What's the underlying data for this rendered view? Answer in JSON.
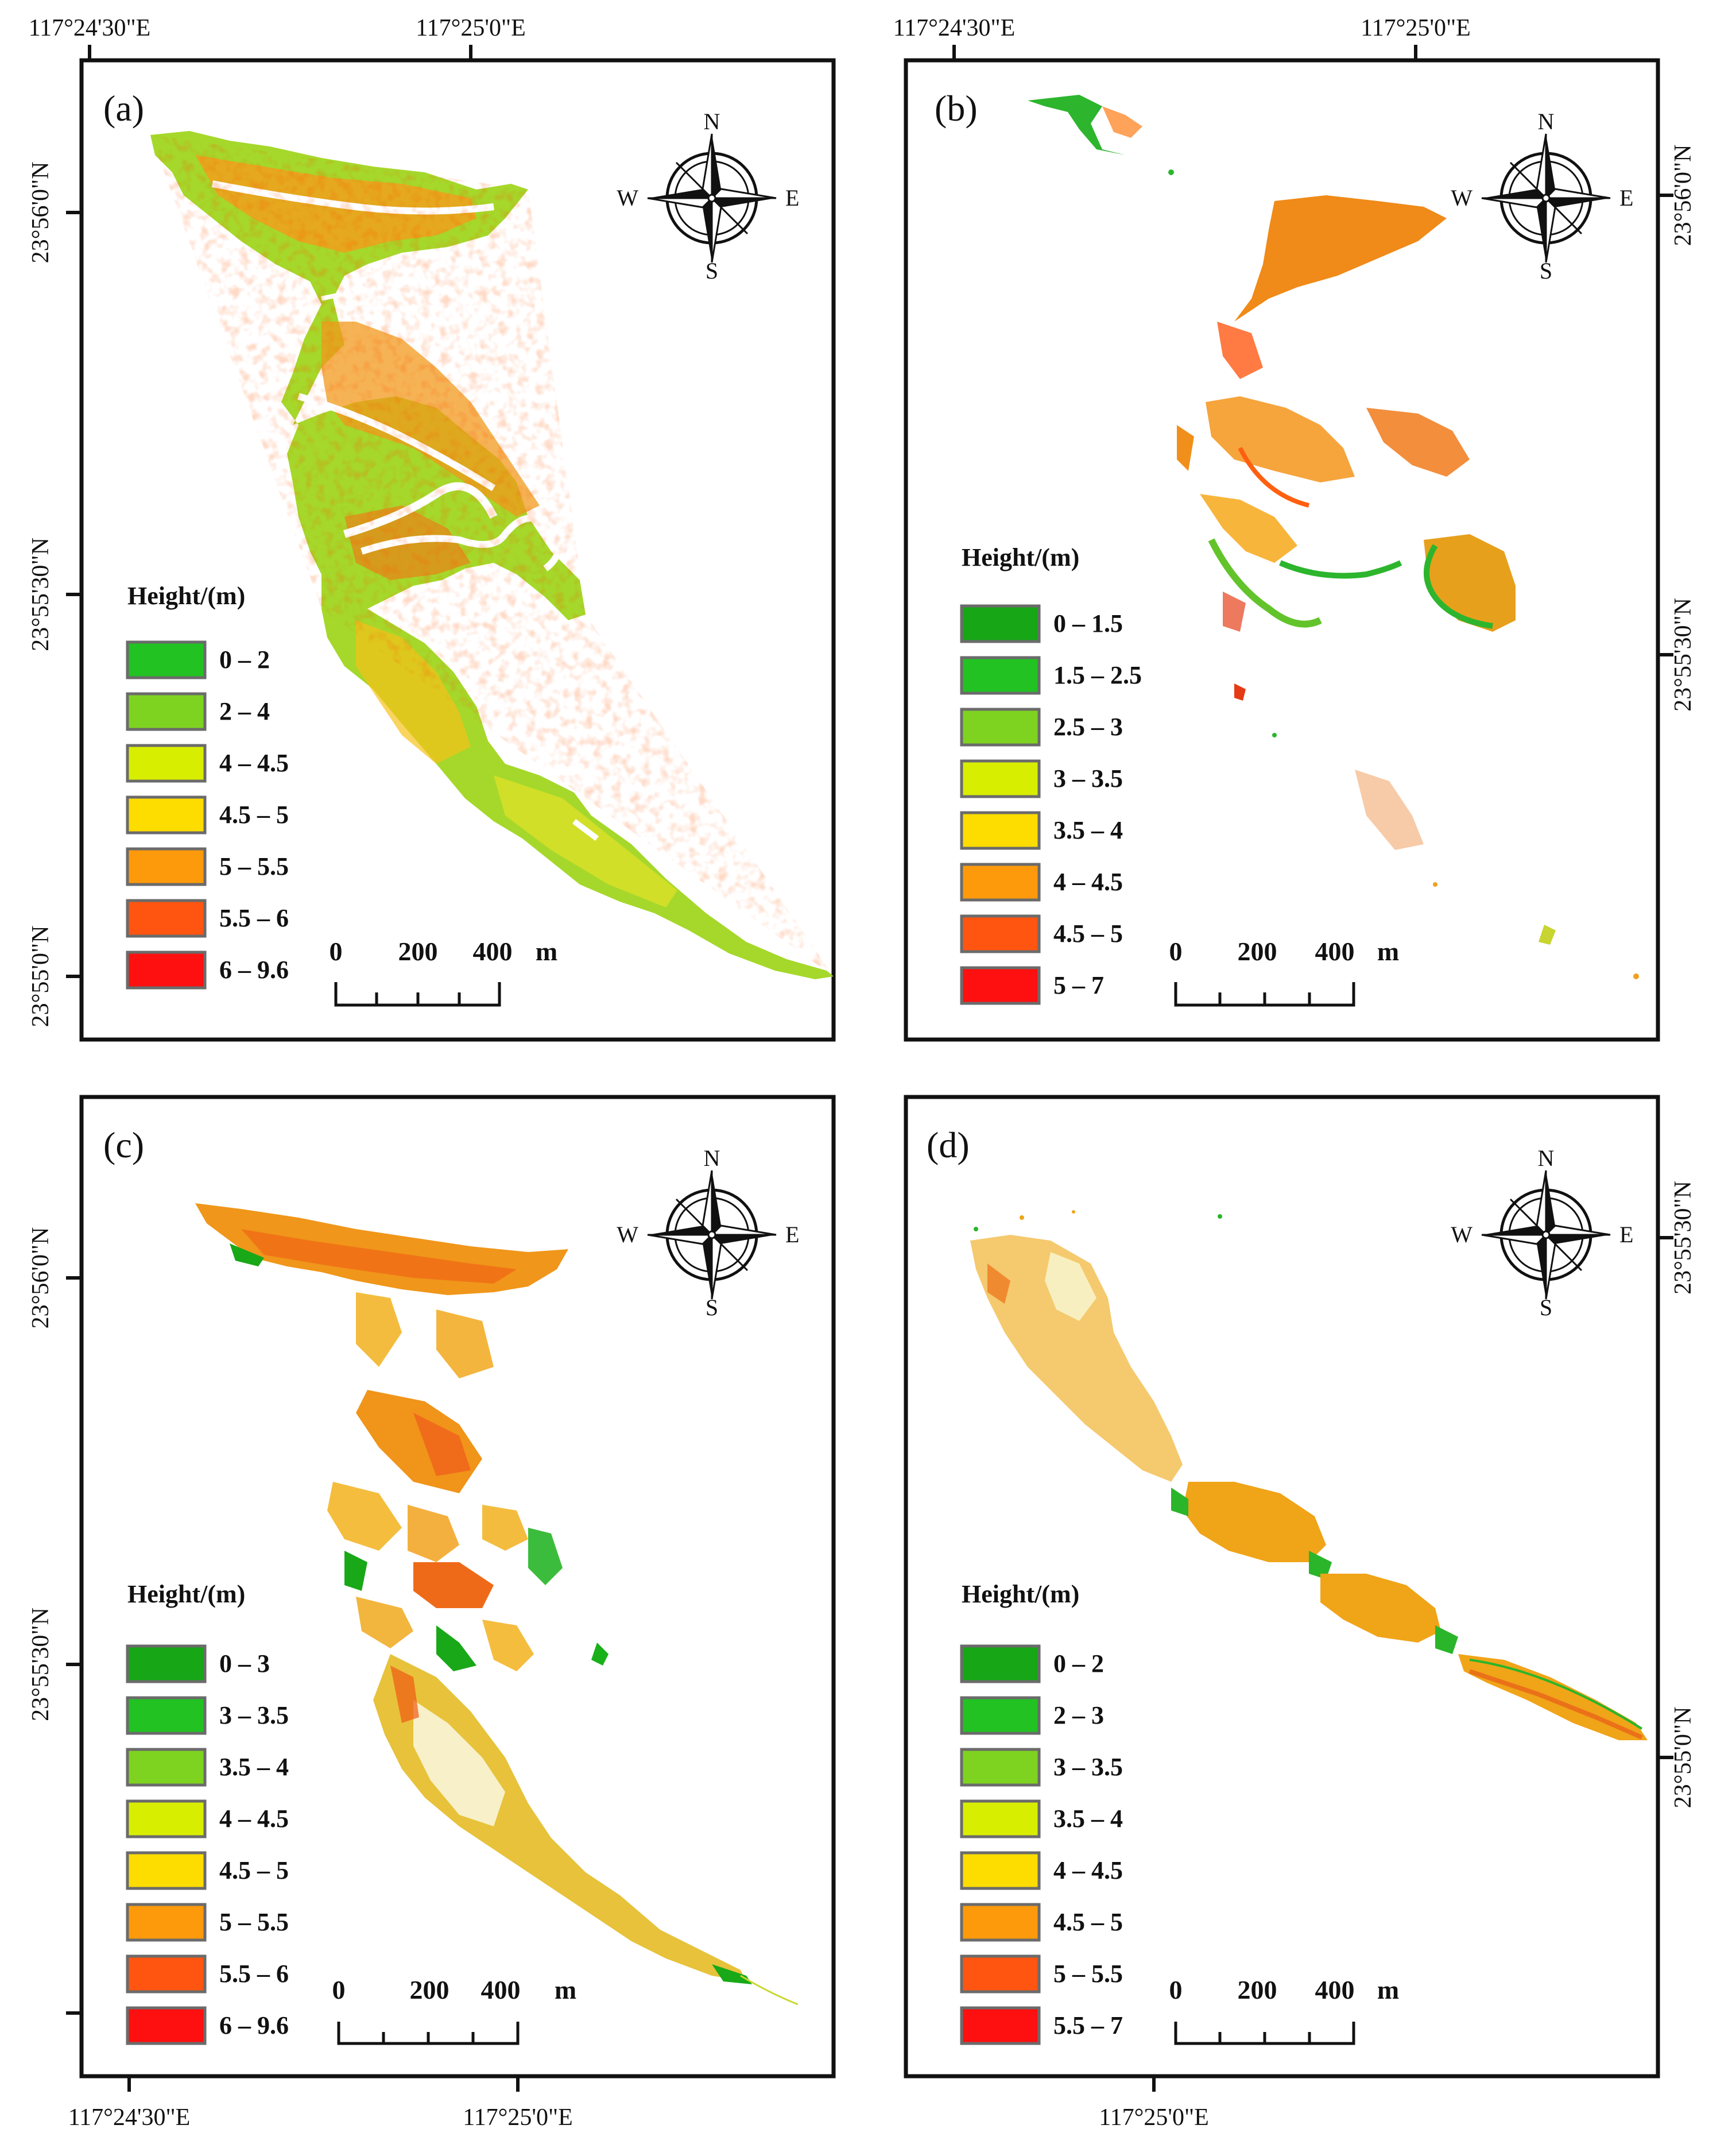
{
  "panels": [
    {
      "id": "a",
      "label": "(a)",
      "legend_title": "Height/(m)",
      "legend": [
        {
          "label": "0 – 2",
          "color": "#22c222"
        },
        {
          "label": "2 – 4",
          "color": "#7ed321"
        },
        {
          "label": "4 – 4.5",
          "color": "#d8ee00"
        },
        {
          "label": "4.5 – 5",
          "color": "#fddc00"
        },
        {
          "label": "5 – 5.5",
          "color": "#fd9a0c"
        },
        {
          "label": "5.5 – 6",
          "color": "#ff5510"
        },
        {
          "label": "6 – 9.6",
          "color": "#ff1010"
        }
      ],
      "scale": {
        "zero": "0",
        "mid": "200",
        "end": "400",
        "unit": "m"
      },
      "lon_ticks": [
        "117°24'30\"E",
        "117°25'0\"E"
      ],
      "lat_ticks": [
        "23°56'0\"N",
        "23°55'30\"N",
        "23°55'0\"N"
      ]
    },
    {
      "id": "b",
      "label": "(b)",
      "legend_title": "Height/(m)",
      "legend": [
        {
          "label": "0 – 1.5",
          "color": "#16a616"
        },
        {
          "label": "1.5 – 2.5",
          "color": "#22c222"
        },
        {
          "label": "2.5 – 3",
          "color": "#7ed321"
        },
        {
          "label": "3 – 3.5",
          "color": "#d8ee00"
        },
        {
          "label": "3.5 – 4",
          "color": "#fddc00"
        },
        {
          "label": "4 – 4.5",
          "color": "#fd9a0c"
        },
        {
          "label": "4.5 – 5",
          "color": "#ff5510"
        },
        {
          "label": "5 – 7",
          "color": "#ff1010"
        }
      ],
      "scale": {
        "zero": "0",
        "mid": "200",
        "end": "400",
        "unit": "m"
      },
      "lon_ticks": [
        "117°24'30\"E",
        "117°25'0\"E"
      ],
      "lat_ticks": [
        "23°56'0\"N",
        "23°55'30\"N"
      ]
    },
    {
      "id": "c",
      "label": "(c)",
      "legend_title": "Height/(m)",
      "legend": [
        {
          "label": "0 – 3",
          "color": "#16a616"
        },
        {
          "label": "3 – 3.5",
          "color": "#22c222"
        },
        {
          "label": "3.5 – 4",
          "color": "#7ed321"
        },
        {
          "label": "4 – 4.5",
          "color": "#d8ee00"
        },
        {
          "label": "4.5 – 5",
          "color": "#fddc00"
        },
        {
          "label": "5 – 5.5",
          "color": "#fd9a0c"
        },
        {
          "label": "5.5 – 6",
          "color": "#ff5510"
        },
        {
          "label": "6 – 9.6",
          "color": "#ff1010"
        }
      ],
      "scale": {
        "zero": "0",
        "mid": "200",
        "end": "400",
        "unit": "m"
      },
      "lon_ticks": [
        "117°24'30\"E",
        "117°25'0\"E"
      ],
      "lat_ticks": [
        "23°56'0\"N",
        "23°55'30\"N"
      ]
    },
    {
      "id": "d",
      "label": "(d)",
      "legend_title": "Height/(m)",
      "legend": [
        {
          "label": "0 – 2",
          "color": "#16a616"
        },
        {
          "label": "2 – 3",
          "color": "#22c222"
        },
        {
          "label": "3 – 3.5",
          "color": "#7ed321"
        },
        {
          "label": "3.5 – 4",
          "color": "#d8ee00"
        },
        {
          "label": "4 – 4.5",
          "color": "#fddc00"
        },
        {
          "label": "4.5 – 5",
          "color": "#fd9a0c"
        },
        {
          "label": "5 – 5.5",
          "color": "#ff5510"
        },
        {
          "label": "5.5 – 7",
          "color": "#ff1010"
        }
      ],
      "scale": {
        "zero": "0",
        "mid": "200",
        "end": "400",
        "unit": "m"
      },
      "lon_ticks": [
        "117°25'0\"E"
      ],
      "lat_ticks": [
        "23°55'30\"N",
        "23°55'0\"N"
      ]
    }
  ],
  "compass": {
    "n": "N",
    "s": "S",
    "e": "E",
    "w": "W"
  }
}
